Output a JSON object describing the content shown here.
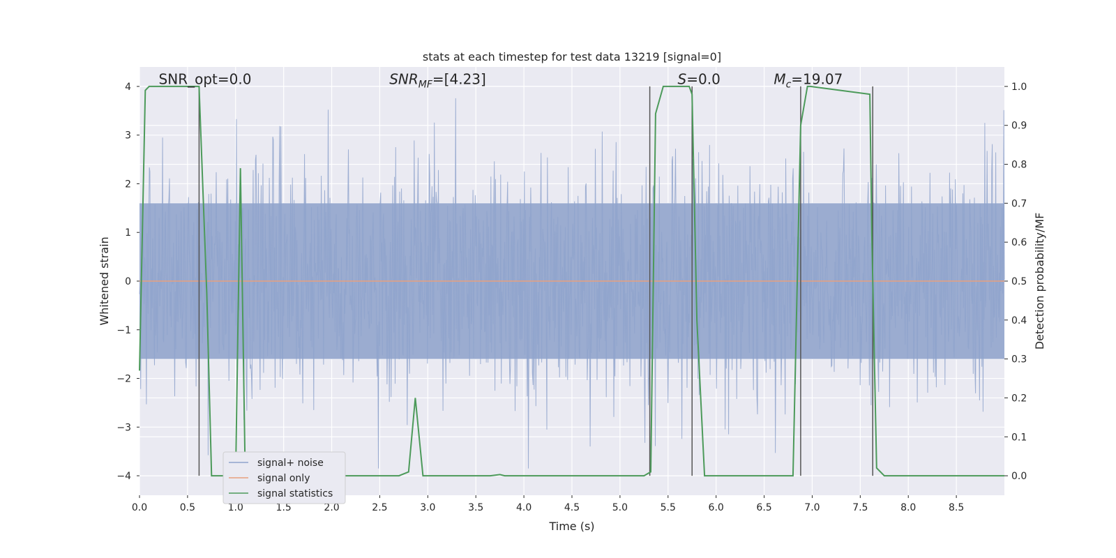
{
  "chart_data": {
    "type": "line",
    "title": "stats at each timestep for test data 13219 [signal=0]",
    "xlabel": "Time (s)",
    "ylabel": "Whitened strain",
    "y2label": "Detection probability/MF",
    "xlim": [
      0.0,
      9.0
    ],
    "ylim": [
      -4.4,
      4.4
    ],
    "y2lim": [
      -0.05,
      1.05
    ],
    "xticks": [
      "0.0",
      "0.5",
      "1.0",
      "1.5",
      "2.0",
      "2.5",
      "3.0",
      "3.5",
      "4.0",
      "4.5",
      "5.0",
      "5.5",
      "6.0",
      "6.5",
      "7.0",
      "7.5",
      "8.0",
      "8.5"
    ],
    "yticks": [
      "4",
      "3",
      "2",
      "1",
      "0",
      "−1",
      "−2",
      "−3",
      "−4"
    ],
    "y2ticks": [
      "1.0",
      "0.9",
      "0.8",
      "0.7",
      "0.6",
      "0.5",
      "0.4",
      "0.3",
      "0.2",
      "0.1",
      "0.0"
    ],
    "grid": true,
    "legend_position": "lower left",
    "annotations": [
      {
        "text": "SNR_opt=0.0",
        "x": 0.2,
        "y": 4.05
      },
      {
        "text": "SNR_MF=[4.23]",
        "x": 2.6,
        "y": 4.05
      },
      {
        "text": "S=0.0",
        "x": 5.6,
        "y": 4.05
      },
      {
        "text": "M_c=19.07",
        "x": 6.6,
        "y": 4.05
      }
    ],
    "series": [
      {
        "name": "signal+ noise",
        "color": "#8fa3cc",
        "style": "dense noisy strain, approx. range −3.8 to 3.8, bulk within ±1.6"
      },
      {
        "name": "signal only",
        "color": "#e8a07e",
        "y": 0.0
      },
      {
        "name": "signal statistics",
        "color": "#4c9a5a",
        "axis": "right",
        "x": [
          0.0,
          0.06,
          0.1,
          0.6,
          0.62,
          0.7,
          0.75,
          1.0,
          1.05,
          1.1,
          1.15,
          2.7,
          2.8,
          2.87,
          2.95,
          3.0,
          3.65,
          3.75,
          3.8,
          5.25,
          5.32,
          5.37,
          5.45,
          5.72,
          5.75,
          5.8,
          5.88,
          5.95,
          6.8,
          6.88,
          6.95,
          6.98,
          7.6,
          7.62,
          7.67,
          7.75,
          9.0
        ],
        "y": [
          0.27,
          0.99,
          1.0,
          1.0,
          1.0,
          0.47,
          0.0,
          0.0,
          0.79,
          0.0,
          0.0,
          0.0,
          0.01,
          0.2,
          0.0,
          0.0,
          0.0,
          0.003,
          0.0,
          0.0,
          0.01,
          0.93,
          1.0,
          1.0,
          0.98,
          0.4,
          0.0,
          0.0,
          0.0,
          0.9,
          1.0,
          1.0,
          0.98,
          0.62,
          0.02,
          0.0,
          0.0
        ]
      }
    ],
    "vlines": [
      0.62,
      5.31,
      5.75,
      6.88,
      7.63
    ]
  }
}
